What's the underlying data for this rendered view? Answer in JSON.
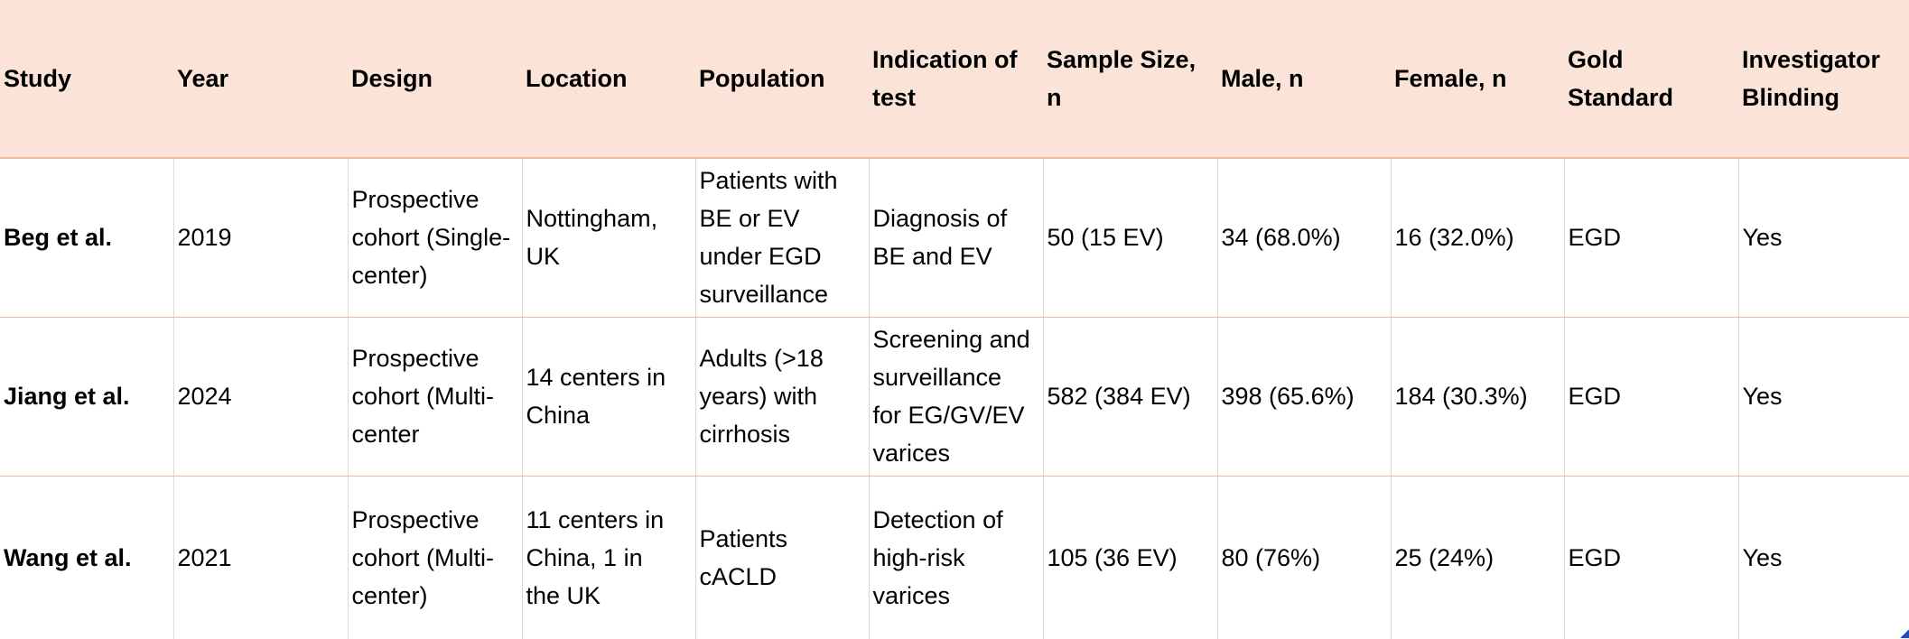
{
  "table": {
    "headers": [
      "Study",
      "Year",
      "Design",
      "Location",
      "Population",
      "Indication of\ntest",
      "Sample Size,\nn",
      "Male, n",
      "Female, n",
      "Gold\nStandard",
      "Investigator\nBlinding"
    ],
    "rows": [
      {
        "study": "Beg et al.",
        "year": "2019",
        "design": "Prospective\ncohort (Single-\ncenter)",
        "location": "Nottingham,\nUK",
        "population": "Patients with\nBE or EV\nunder EGD\nsurveillance",
        "indication": "Diagnosis of\nBE and EV",
        "sample_size": "50 (15 EV)",
        "male": "34 (68.0%)",
        "female": "16 (32.0%)",
        "gold_standard": "EGD",
        "blinding": "Yes"
      },
      {
        "study": "Jiang et al.",
        "year": "2024",
        "design": "Prospective\ncohort (Multi-\ncenter",
        "location": "14 centers in\nChina",
        "population": "Adults (>18\nyears) with\ncirrhosis",
        "indication": "Screening and\nsurveillance\nfor EG/GV/EV\nvarices",
        "sample_size": "582 (384 EV)",
        "male": "398 (65.6%)",
        "female": "184 (30.3%)",
        "gold_standard": "EGD",
        "blinding": "Yes"
      },
      {
        "study": "Wang et al.",
        "year": "2021",
        "design": "Prospective\ncohort (Multi-\ncenter)",
        "location": "11 centers in\nChina, 1 in\nthe UK",
        "population": "Patients\ncACLD",
        "indication": "Detection of\nhigh-risk\nvarices",
        "sample_size": "105 (36 EV)",
        "male": "80 (76%)",
        "female": "25 (24%)",
        "gold_standard": "EGD",
        "blinding": "Yes"
      }
    ]
  },
  "colors": {
    "header_bg": "#fbe3d8",
    "row_divider": "#f2b79f",
    "column_divider": "#d9d9d9"
  }
}
